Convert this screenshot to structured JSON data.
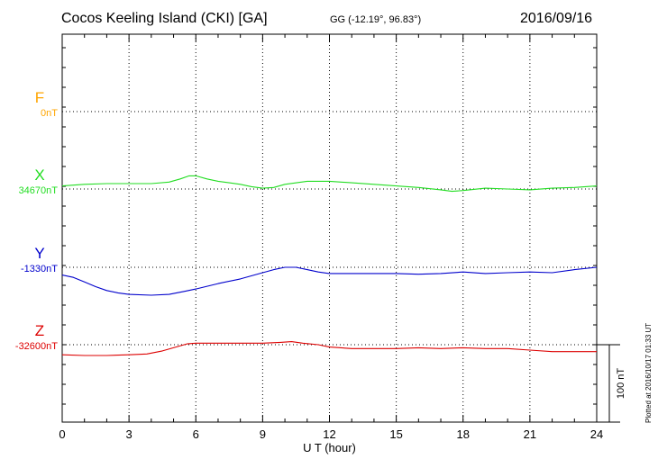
{
  "header": {
    "title": "Cocos Keeling Island (CKI)  [GA]",
    "coords": "GG (-12.19°,  96.83°)",
    "date": "2016/09/16"
  },
  "footer": {
    "plotted": "Plotted at 2016/10/17 01:33 UT"
  },
  "chart_data": {
    "type": "line",
    "xlabel": "U T (hour)",
    "xlim": [
      0,
      24
    ],
    "xticks": [
      0,
      3,
      6,
      9,
      12,
      15,
      18,
      21,
      24
    ],
    "scale_bar_label": "100 nT",
    "scale_bar_nT": 100,
    "grid": true,
    "series": [
      {
        "name": "F",
        "baseline_label": "0nT",
        "color": "#ffa500",
        "x": [],
        "values": []
      },
      {
        "name": "X",
        "baseline_label": "34670nT",
        "color": "#22dd22",
        "x": [
          0,
          1,
          2,
          3,
          4,
          4.8,
          5.3,
          5.7,
          6,
          6.5,
          7,
          7.5,
          8,
          8.5,
          9,
          9.5,
          10,
          11,
          12,
          13,
          14,
          15,
          16,
          17,
          17.5,
          18,
          19,
          20,
          21,
          22,
          23,
          24
        ],
        "values": [
          4,
          6,
          7,
          7,
          7,
          9,
          13,
          17,
          17,
          13,
          10,
          8,
          6,
          3,
          1,
          2,
          6,
          10,
          10,
          8,
          6,
          4,
          2,
          -1,
          -3,
          -2,
          1,
          0,
          -1,
          1,
          2,
          4
        ]
      },
      {
        "name": "Y",
        "baseline_label": "-1330nT",
        "color": "#0000cc",
        "x": [
          0,
          0.5,
          1,
          1.5,
          2,
          2.5,
          3,
          4,
          4.8,
          5.5,
          6,
          7,
          8,
          9,
          9.5,
          10,
          10.5,
          11,
          11.5,
          12,
          13,
          14,
          15,
          16,
          17,
          18,
          19,
          20,
          21,
          22,
          23,
          24
        ],
        "values": [
          -10,
          -13,
          -19,
          -25,
          -30,
          -33,
          -35,
          -36,
          -35,
          -31,
          -28,
          -21,
          -15,
          -7,
          -3,
          0,
          0,
          -3,
          -6,
          -8,
          -8,
          -8,
          -8,
          -9,
          -8,
          -6,
          -8,
          -7,
          -6,
          -7,
          -3,
          0
        ]
      },
      {
        "name": "Z",
        "baseline_label": "-32600nT",
        "color": "#dd0000",
        "x": [
          0,
          1,
          2,
          3,
          3.8,
          4.5,
          5,
          5.6,
          6,
          6.5,
          7,
          8,
          9,
          9.8,
          10.3,
          10.8,
          11.5,
          12,
          13,
          14,
          15,
          16,
          17,
          18,
          19,
          20,
          21,
          22,
          23,
          24
        ],
        "values": [
          -13,
          -14,
          -14,
          -13,
          -12,
          -8,
          -4,
          1,
          2,
          2,
          2,
          2,
          2,
          3,
          4,
          2,
          0,
          -3,
          -5,
          -5,
          -5,
          -4,
          -5,
          -4,
          -5,
          -5,
          -7,
          -9,
          -9,
          -9
        ]
      }
    ]
  }
}
